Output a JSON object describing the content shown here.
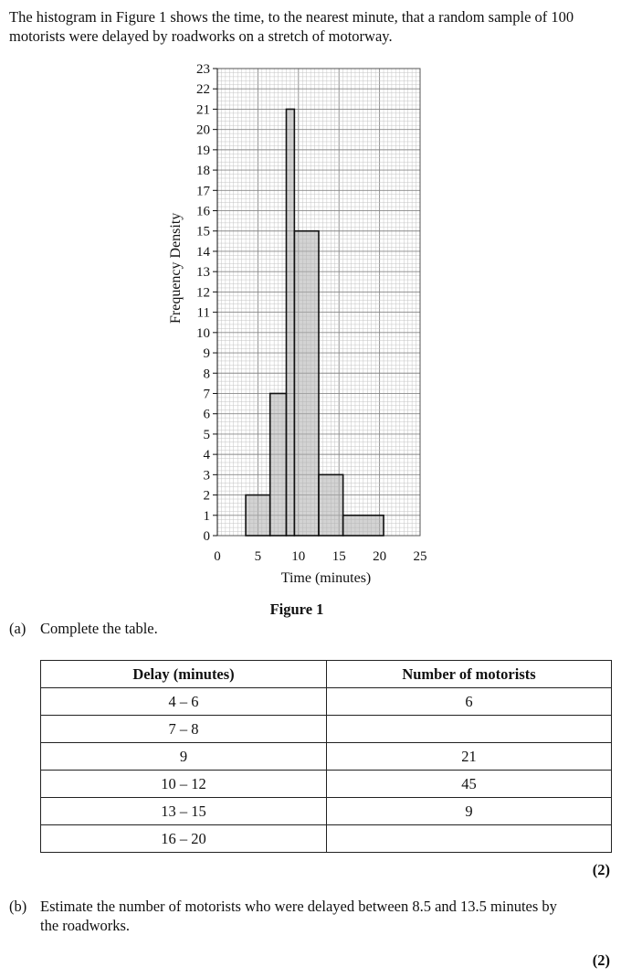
{
  "intro": "The histogram in Figure 1 shows the time, to the nearest minute, that a random sample of 100 motorists were delayed by roadworks on a stretch of motorway.",
  "chart_data": {
    "type": "bar",
    "title": "Figure 1",
    "xlabel": "Time (minutes)",
    "ylabel": "Frequency Density",
    "xlim": [
      0,
      25
    ],
    "ylim": [
      0,
      23
    ],
    "x_ticks": [
      0,
      5,
      10,
      15,
      20,
      25
    ],
    "y_ticks": [
      0,
      1,
      2,
      3,
      4,
      5,
      6,
      7,
      8,
      9,
      10,
      11,
      12,
      13,
      14,
      15,
      16,
      17,
      18,
      19,
      20,
      21,
      22,
      23
    ],
    "grid": true,
    "bars": [
      {
        "x_start": 3.5,
        "x_end": 6.5,
        "value": 2
      },
      {
        "x_start": 6.5,
        "x_end": 8.5,
        "value": 7
      },
      {
        "x_start": 8.5,
        "x_end": 9.5,
        "value": 21
      },
      {
        "x_start": 9.5,
        "x_end": 12.5,
        "value": 15
      },
      {
        "x_start": 12.5,
        "x_end": 15.5,
        "value": 3
      },
      {
        "x_start": 15.5,
        "x_end": 20.5,
        "value": 1
      }
    ]
  },
  "part_a": {
    "label": "(a)",
    "text": "Complete the table."
  },
  "table": {
    "headers": [
      "Delay (minutes)",
      "Number of motorists"
    ],
    "rows": [
      [
        "4 – 6",
        "6"
      ],
      [
        "7 – 8",
        ""
      ],
      [
        "9",
        "21"
      ],
      [
        "10 – 12",
        "45"
      ],
      [
        "13 – 15",
        "9"
      ],
      [
        "16 – 20",
        ""
      ]
    ]
  },
  "marks_a": "(2)",
  "part_b": {
    "label": "(b)",
    "line1": "Estimate the number of motorists who were delayed between 8.5 and 13.5 minutes by",
    "line2": "the roadworks."
  },
  "marks_b": "(2)"
}
